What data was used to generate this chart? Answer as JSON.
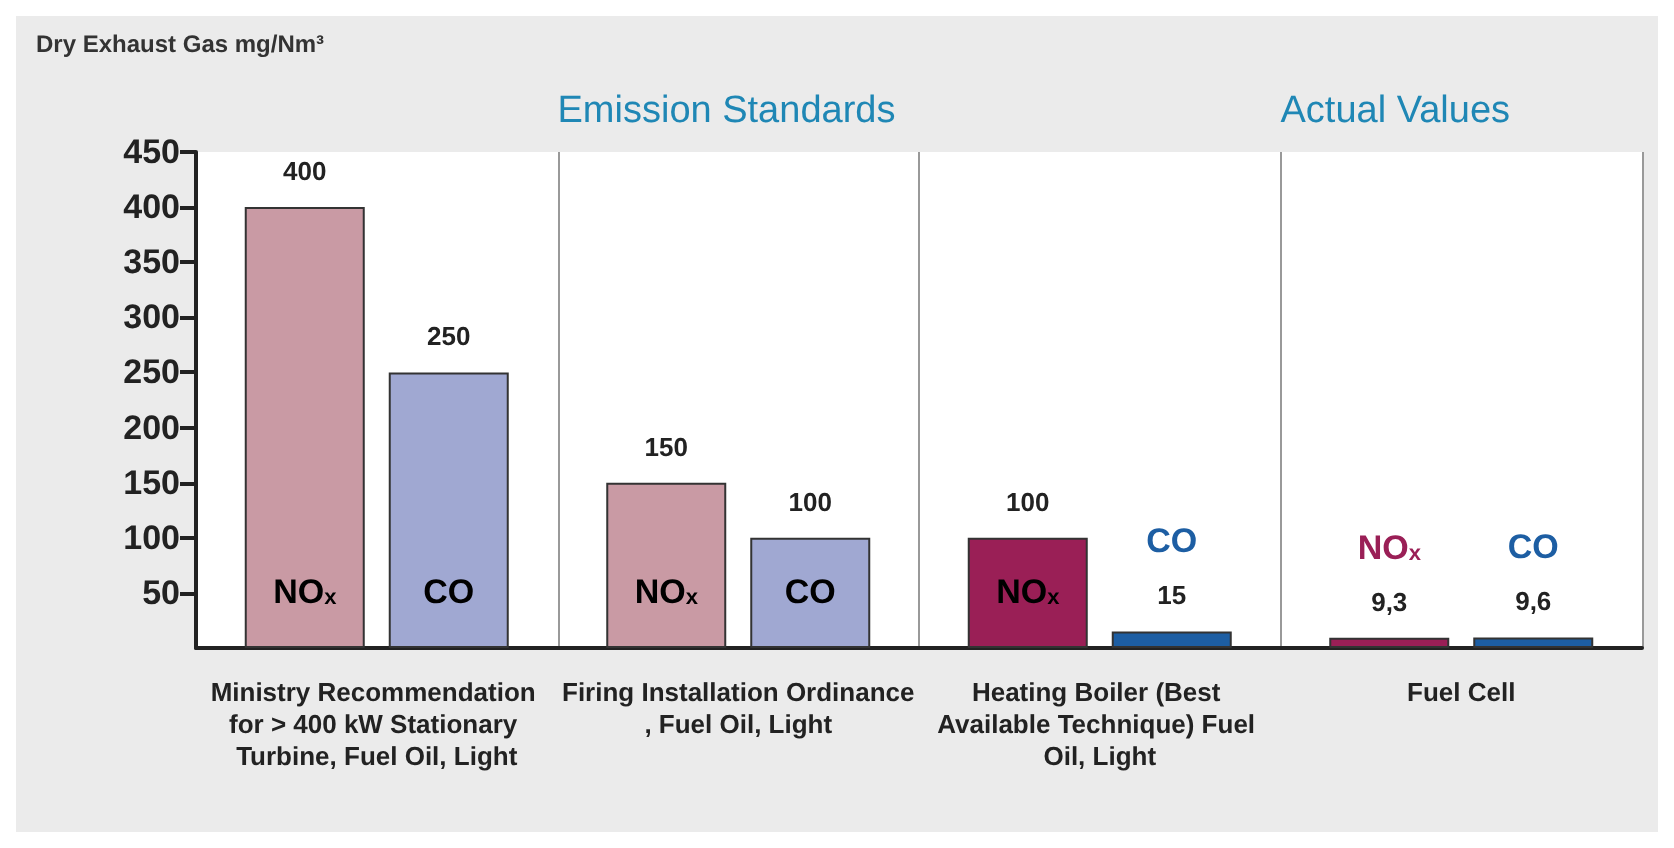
{
  "chart_data": {
    "type": "bar",
    "ylabel": "Dry Exhaust Gas mg/Nm³",
    "annotations": [
      "Emission Standards",
      "Actual Values"
    ],
    "categories": [
      "Ministry Recommendation for > 400 kW Stationary Turbine, Fuel Oil, Light",
      "Firing Installation Ordinance, Fuel Oil, Light",
      "Heating Boiler (Best Available Technique) Fuel Oil, Light",
      "Fuel Cell"
    ],
    "series": [
      {
        "name": "NO$_{x}$",
        "colors": [
          "#c99aa4",
          "#c99aa4",
          "#9a1f56",
          "#9a1f56"
        ],
        "values": [
          400,
          150,
          100,
          9.3
        ],
        "value_labels": [
          "400",
          "150",
          "100",
          "9,3"
        ]
      },
      {
        "name": "CO",
        "colors": [
          "#a0a8d2",
          "#a0a8d2",
          "#1d5ea3",
          "#1d5ea3"
        ],
        "values": [
          250,
          100,
          15,
          9.6
        ],
        "value_labels": [
          "250",
          "100",
          "15",
          "9,6"
        ]
      }
    ],
    "ylim": [
      0,
      450
    ],
    "yticks": [
      50,
      100,
      150,
      200,
      250,
      300,
      350,
      400,
      450
    ],
    "grid": "x",
    "legend": false
  }
}
